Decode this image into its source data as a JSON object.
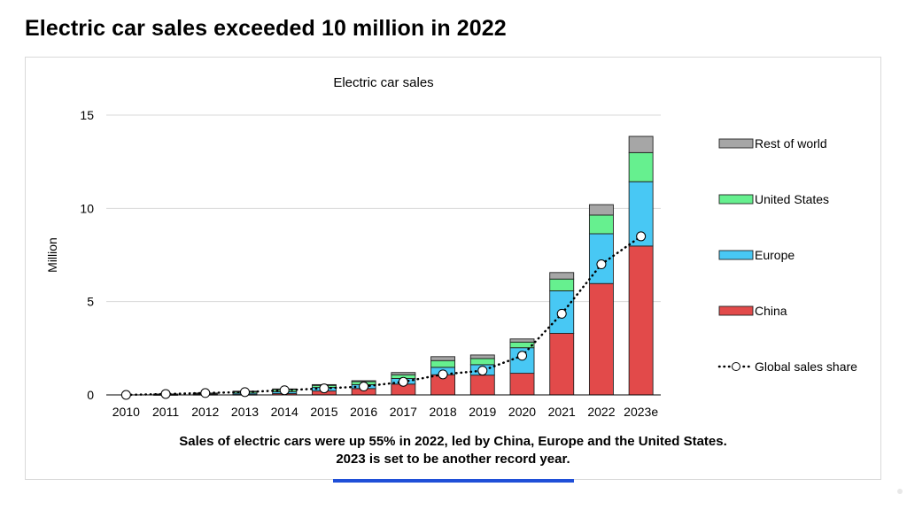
{
  "headline": "Electric car sales exceeded 10 million in 2022",
  "caption": {
    "line1": "Sales of electric cars were up 55% in 2022, led by China, Europe and the United States.",
    "line2": "2023 is set to be another record year."
  },
  "chart_data": {
    "type": "bar",
    "stacked": true,
    "title": "Electric car sales",
    "ylabel": "Million",
    "xlabel": "",
    "ylim": [
      0,
      15
    ],
    "yticks": [
      0,
      5,
      10,
      15
    ],
    "grid": true,
    "legend_placement": "right",
    "categories": [
      "2010",
      "2011",
      "2012",
      "2013",
      "2014",
      "2015",
      "2016",
      "2017",
      "2018",
      "2019",
      "2020",
      "2021",
      "2022",
      "2023e"
    ],
    "series": [
      {
        "name": "China",
        "color": "#e24a4a",
        "values": [
          0.0,
          0.01,
          0.02,
          0.02,
          0.07,
          0.21,
          0.34,
          0.58,
          1.08,
          1.06,
          1.16,
          3.3,
          5.97,
          7.98
        ]
      },
      {
        "name": "Europe",
        "color": "#48c8f4",
        "values": [
          0.0,
          0.01,
          0.02,
          0.07,
          0.1,
          0.19,
          0.21,
          0.3,
          0.4,
          0.56,
          1.37,
          2.28,
          2.67,
          3.45
        ]
      },
      {
        "name": "United States",
        "color": "#66f08f",
        "values": [
          0.0,
          0.02,
          0.05,
          0.08,
          0.12,
          0.11,
          0.16,
          0.2,
          0.36,
          0.33,
          0.3,
          0.63,
          1.0,
          1.56
        ]
      },
      {
        "name": "Rest of world",
        "color": "#a6a6a6",
        "values": [
          0.0,
          0.01,
          0.01,
          0.03,
          0.03,
          0.04,
          0.05,
          0.12,
          0.21,
          0.19,
          0.17,
          0.35,
          0.56,
          0.87
        ]
      }
    ],
    "line_series": {
      "name": "Global sales share",
      "style": "dotted",
      "marker": "open-circle",
      "values": [
        0.0,
        0.05,
        0.1,
        0.15,
        0.25,
        0.35,
        0.45,
        0.7,
        1.1,
        1.3,
        2.1,
        4.35,
        7.0,
        8.5
      ]
    },
    "legend_order": [
      "Rest of world",
      "United States",
      "Europe",
      "China",
      "Global sales share"
    ]
  }
}
